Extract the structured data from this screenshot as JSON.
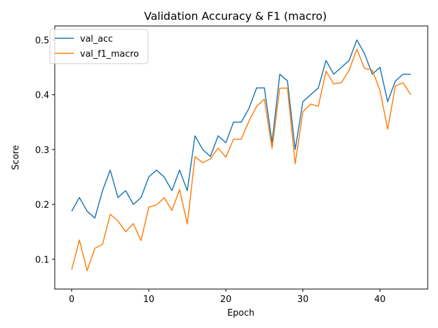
{
  "chart_data": {
    "type": "line",
    "title": "Validation Accuracy & F1 (macro)",
    "xlabel": "Epoch",
    "ylabel": "Score",
    "xlim": [
      -2.2,
      46.2
    ],
    "ylim": [
      0.0455,
      0.5255
    ],
    "xticks": [
      0,
      10,
      20,
      30,
      40
    ],
    "yticks": [
      0.1,
      0.2,
      0.3,
      0.4,
      0.5
    ],
    "ytick_labels": [
      "0.1",
      "0.2",
      "0.3",
      "0.4",
      "0.5"
    ],
    "grid": false,
    "legend_position": "upper-left",
    "x": [
      0,
      1,
      2,
      3,
      4,
      5,
      6,
      7,
      8,
      9,
      10,
      11,
      12,
      13,
      14,
      15,
      16,
      17,
      18,
      19,
      20,
      21,
      22,
      23,
      24,
      25,
      26,
      27,
      28,
      29,
      30,
      31,
      32,
      33,
      34,
      35,
      36,
      37,
      38,
      39,
      40,
      41,
      42,
      43,
      44
    ],
    "series": [
      {
        "name": "val_acc",
        "color": "#1f77b4",
        "values": [
          0.1875,
          0.2125,
          0.1875,
          0.175,
          0.225,
          0.2625,
          0.2125,
          0.225,
          0.2,
          0.2125,
          0.25,
          0.2625,
          0.25,
          0.225,
          0.2625,
          0.225,
          0.325,
          0.3,
          0.2875,
          0.325,
          0.3125,
          0.35,
          0.35,
          0.375,
          0.4125,
          0.4125,
          0.3125,
          0.4375,
          0.425,
          0.3,
          0.3875,
          0.4,
          0.4125,
          0.4625,
          0.4375,
          0.45,
          0.4625,
          0.5,
          0.475,
          0.4375,
          0.45,
          0.3875,
          0.425,
          0.4375,
          0.4375
        ]
      },
      {
        "name": "val_f1_macro",
        "color": "#ff7f0e",
        "values": [
          0.081,
          0.135,
          0.079,
          0.12,
          0.127,
          0.182,
          0.17,
          0.15,
          0.165,
          0.134,
          0.195,
          0.199,
          0.212,
          0.189,
          0.227,
          0.164,
          0.287,
          0.276,
          0.283,
          0.303,
          0.286,
          0.319,
          0.319,
          0.352,
          0.379,
          0.392,
          0.302,
          0.412,
          0.412,
          0.274,
          0.369,
          0.383,
          0.379,
          0.443,
          0.42,
          0.422,
          0.445,
          0.483,
          0.448,
          0.445,
          0.408,
          0.337,
          0.416,
          0.422,
          0.4
        ]
      }
    ]
  }
}
